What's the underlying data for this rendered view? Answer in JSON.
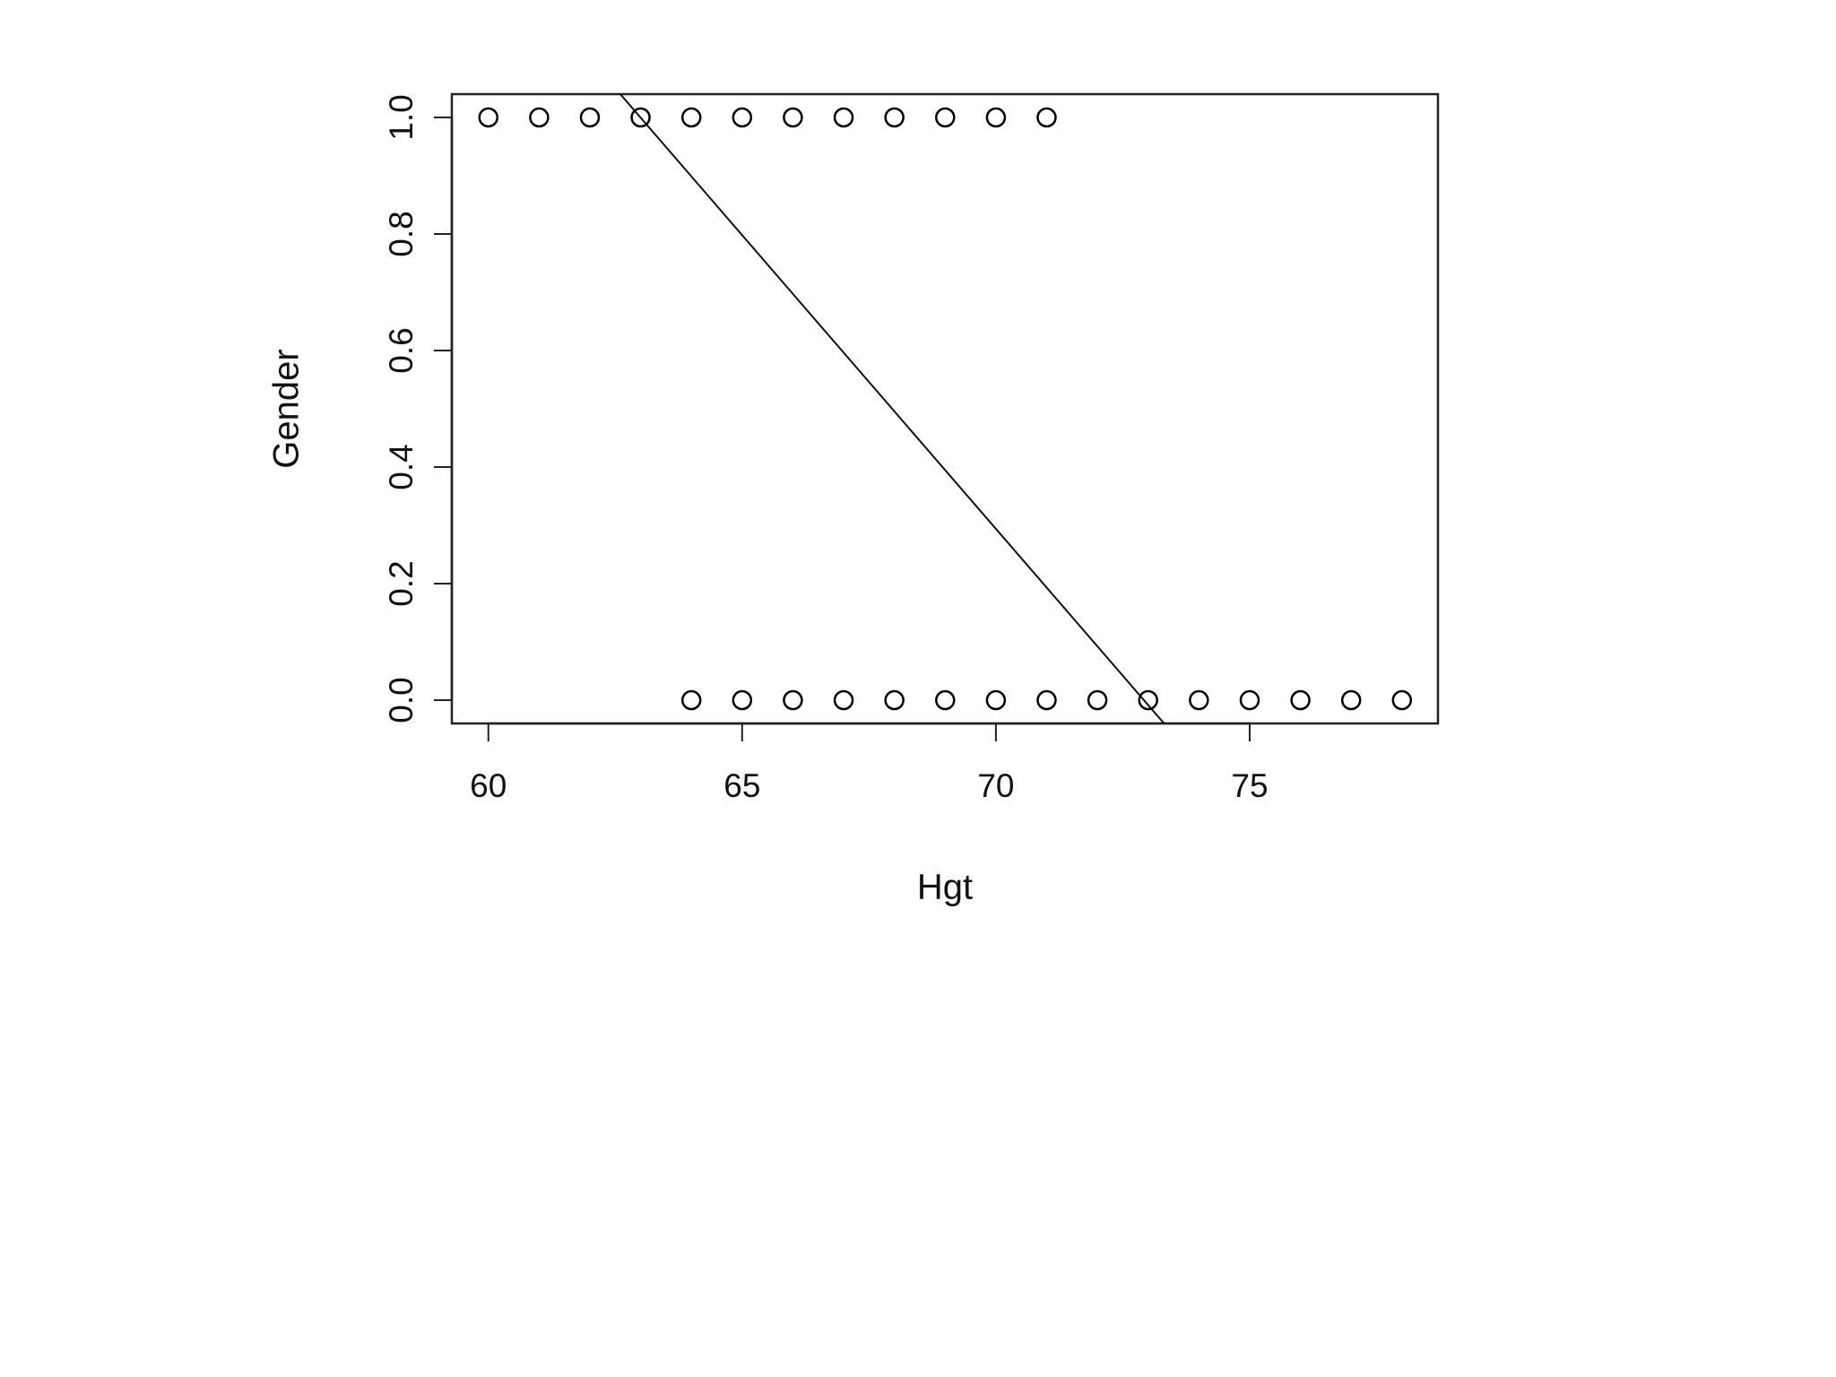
{
  "chart_data": {
    "type": "scatter",
    "x_label": "Hgt",
    "y_label": "Gender",
    "x": [
      60,
      61,
      62,
      63,
      64,
      65,
      66,
      67,
      68,
      69,
      70,
      71,
      64,
      65,
      66,
      67,
      68,
      69,
      70,
      71,
      72,
      73,
      74,
      75,
      76,
      77,
      78
    ],
    "values": [
      1,
      1,
      1,
      1,
      1,
      1,
      1,
      1,
      1,
      1,
      1,
      1,
      0,
      0,
      0,
      0,
      0,
      0,
      0,
      0,
      0,
      0,
      0,
      0,
      0,
      0,
      0
    ],
    "color": "#000000",
    "fit_line": {
      "intercept": 7.35,
      "slope": -0.1008
    },
    "xlim": [
      59.28,
      78.71
    ],
    "ylim": [
      -0.04,
      1.04
    ],
    "xticks": [
      60,
      65,
      70,
      75
    ],
    "yticks": [
      {
        "value": 0,
        "label": "0.0"
      },
      {
        "value": 0.2,
        "label": "0.2"
      },
      {
        "value": 0.4,
        "label": "0.4"
      },
      {
        "value": 0.6,
        "label": "0.6"
      },
      {
        "value": 0.8,
        "label": "0.8"
      },
      {
        "value": 1,
        "label": "1.0"
      }
    ]
  }
}
